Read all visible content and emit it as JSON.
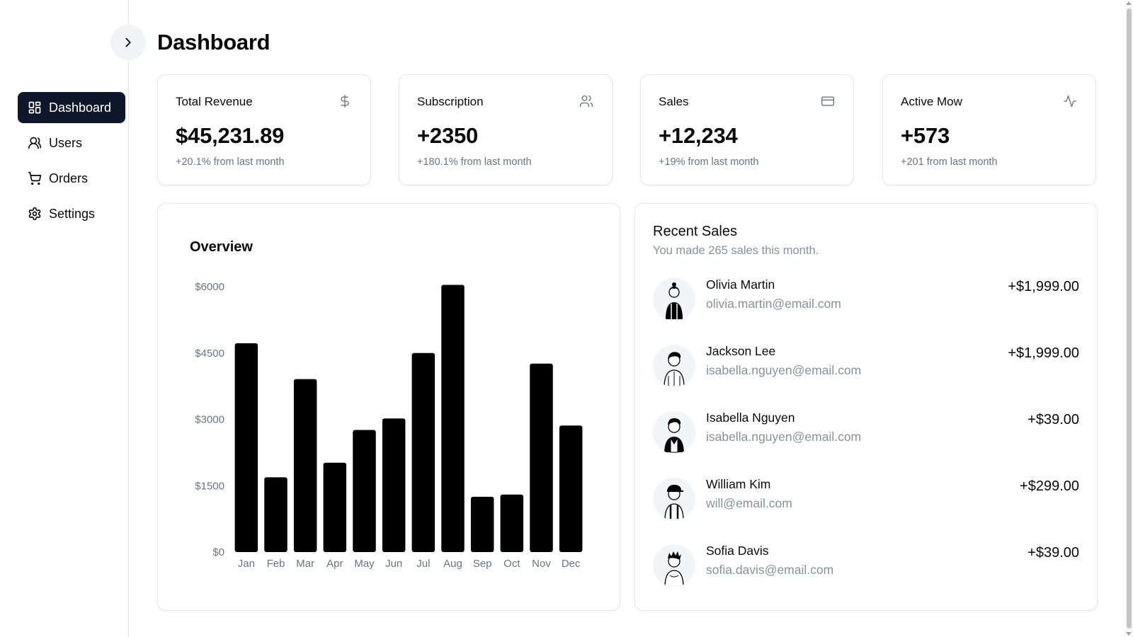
{
  "page": {
    "title": "Dashboard"
  },
  "sidebar": {
    "toggle_icon": "chevron-right-icon",
    "items": [
      {
        "label": "Dashboard",
        "icon": "dashboard-icon",
        "active": true
      },
      {
        "label": "Users",
        "icon": "users-icon",
        "active": false
      },
      {
        "label": "Orders",
        "icon": "cart-icon",
        "active": false
      },
      {
        "label": "Settings",
        "icon": "gear-icon",
        "active": false
      }
    ]
  },
  "stats": [
    {
      "title": "Total Revenue",
      "value": "$45,231.89",
      "note": "+20.1% from last month",
      "icon": "dollar-icon"
    },
    {
      "title": "Subscription",
      "value": "+2350",
      "note": "+180.1% from last month",
      "icon": "users-icon"
    },
    {
      "title": "Sales",
      "value": "+12,234",
      "note": "+19% from last month",
      "icon": "credit-card-icon"
    },
    {
      "title": "Active Mow",
      "value": "+573",
      "note": "+201 from last month",
      "icon": "activity-icon"
    }
  ],
  "overview": {
    "title": "Overview"
  },
  "chart_data": {
    "type": "bar",
    "title": "Overview",
    "categories": [
      "Jan",
      "Feb",
      "Mar",
      "Apr",
      "May",
      "Jun",
      "Jul",
      "Aug",
      "Sep",
      "Oct",
      "Nov",
      "Dec"
    ],
    "values": [
      4720,
      1690,
      3910,
      2020,
      2760,
      3020,
      4500,
      6040,
      1250,
      1300,
      4260,
      2860
    ],
    "y_ticks": [
      "$6000",
      "$4500",
      "$3000",
      "$1500",
      "$0"
    ],
    "ylim": [
      0,
      6000
    ],
    "xlabel": "",
    "ylabel": "",
    "grid": false,
    "bar_color": "#000000"
  },
  "recent_sales": {
    "title": "Recent Sales",
    "subtitle": "You made 265 sales this month.",
    "items": [
      {
        "name": "Olivia Martin",
        "email": "olivia.martin@email.com",
        "amount": "+$1,999.00"
      },
      {
        "name": "Jackson Lee",
        "email": "isabella.nguyen@email.com",
        "amount": "+$1,999.00"
      },
      {
        "name": "Isabella Nguyen",
        "email": "isabella.nguyen@email.com",
        "amount": "+$39.00"
      },
      {
        "name": "William Kim",
        "email": "will@email.com",
        "amount": "+$299.00"
      },
      {
        "name": "Sofia Davis",
        "email": "sofia.davis@email.com",
        "amount": "+$39.00"
      }
    ]
  },
  "colors": {
    "active_nav": "#0f172a",
    "muted_text": "#6b7280",
    "border": "#e5e7eb"
  }
}
